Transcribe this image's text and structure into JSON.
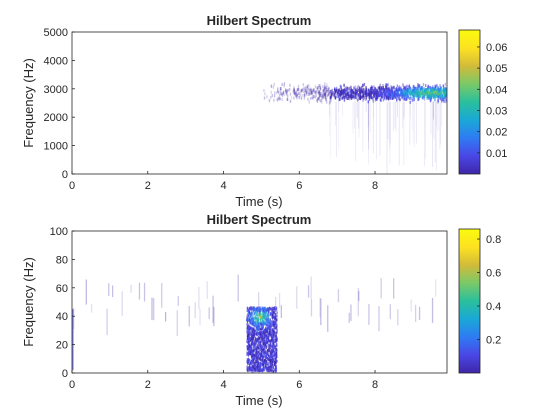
{
  "chart_data": [
    {
      "type": "heatmap",
      "title": "Hilbert Spectrum",
      "xlabel": "Time (s)",
      "ylabel": "Frequency (Hz)",
      "xlim": [
        0,
        9.9
      ],
      "ylim": [
        0,
        5000
      ],
      "x_ticks": [
        "0",
        "2",
        "4",
        "6",
        "8"
      ],
      "y_ticks": [
        "0",
        "1000",
        "2000",
        "3000",
        "4000",
        "5000"
      ],
      "colorbar": {
        "min": 0,
        "max": 0.068,
        "ticks": [
          "0.01",
          "0.02",
          "0.03",
          "0.04",
          "0.05",
          "0.06"
        ]
      },
      "colormap": [
        "#3e26a8",
        "#4a47e6",
        "#2f7bf3",
        "#1aa8d6",
        "#2bbf9d",
        "#7bc968",
        "#d2bb3a",
        "#fde221",
        "#f9fb0e"
      ],
      "band": {
        "t_start": 5.0,
        "t_dense_start": 6.8,
        "t_end": 9.9,
        "freq_center": 2900,
        "freq_halfwidth": 350,
        "peak_t": 9.5
      }
    },
    {
      "type": "heatmap",
      "title": "Hilbert Spectrum",
      "xlabel": "Time (s)",
      "ylabel": "Frequency (Hz)",
      "xlim": [
        0,
        9.9
      ],
      "ylim": [
        0,
        100
      ],
      "x_ticks": [
        "0",
        "2",
        "4",
        "6",
        "8"
      ],
      "y_ticks": [
        "0",
        "20",
        "40",
        "60",
        "80",
        "100"
      ],
      "colorbar": {
        "min": 0,
        "max": 0.86,
        "ticks": [
          "0.2",
          "0.4",
          "0.6",
          "0.8"
        ]
      },
      "colormap": [
        "#3e26a8",
        "#4a47e6",
        "#2f7bf3",
        "#1aa8d6",
        "#2bbf9d",
        "#7bc968",
        "#d2bb3a",
        "#fde221",
        "#f9fb0e"
      ],
      "burst": {
        "t_start": 4.6,
        "t_end": 5.4,
        "freq_low": 2,
        "freq_high": 47,
        "peak_freq": 40
      }
    }
  ]
}
